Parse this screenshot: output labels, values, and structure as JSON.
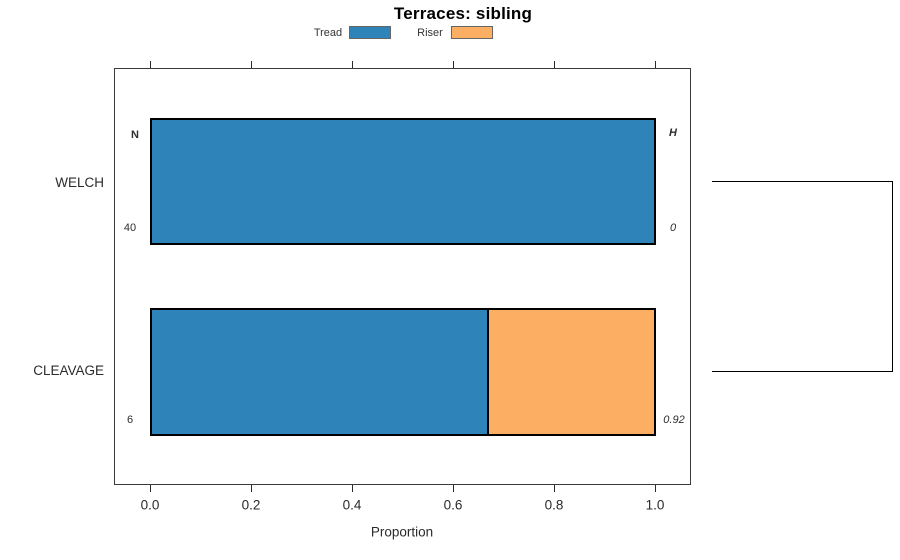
{
  "title": "Terraces: sibling",
  "legend": {
    "items": [
      {
        "label": "Tread",
        "color": "#2E84B8"
      },
      {
        "label": "Riser",
        "color": "#FCAE63"
      }
    ]
  },
  "axis": {
    "xlabel": "Proportion",
    "ticks": [
      "0.0",
      "0.2",
      "0.4",
      "0.6",
      "0.8",
      "1.0"
    ]
  },
  "columns": {
    "n_header": "N",
    "h_header": "H"
  },
  "rows": [
    {
      "category": "WELCH",
      "n": "40",
      "h": "0"
    },
    {
      "category": "CLEAVAGE",
      "n": "6",
      "h": "0.92"
    }
  ],
  "chart_data": {
    "type": "bar",
    "orientation": "horizontal",
    "stacked": true,
    "title": "Terraces: sibling",
    "xlabel": "Proportion",
    "xlim": [
      0,
      1
    ],
    "xticks": [
      0.0,
      0.2,
      0.4,
      0.6,
      0.8,
      1.0
    ],
    "grid": false,
    "legend_position": "top",
    "categories": [
      "WELCH",
      "CLEAVAGE"
    ],
    "series": [
      {
        "name": "Tread",
        "color": "#2E84B8",
        "values": [
          1.0,
          0.667
        ]
      },
      {
        "name": "Riser",
        "color": "#FCAE63",
        "values": [
          0.0,
          0.333
        ]
      }
    ],
    "annotations": {
      "N": [
        40,
        6
      ],
      "H": [
        0,
        0.92
      ]
    },
    "bracket": {
      "connects": [
        "WELCH",
        "CLEAVAGE"
      ],
      "side": "right"
    }
  }
}
